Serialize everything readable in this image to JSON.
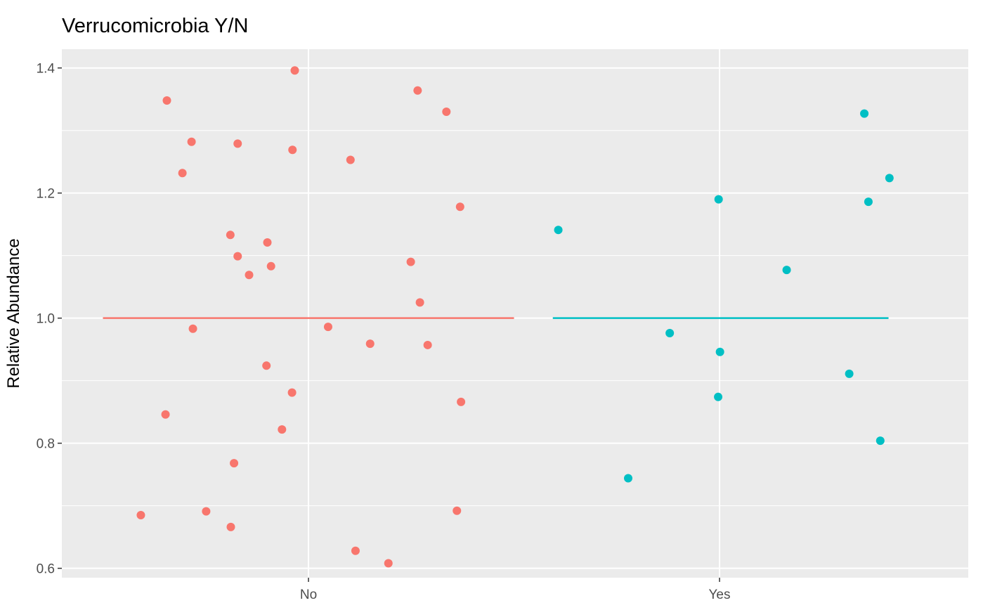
{
  "chart_data": {
    "type": "scatter",
    "title": "Verrucomicrobia Y/N",
    "xlabel": "",
    "ylabel": "Relative Abundance",
    "categories": [
      "No",
      "Yes"
    ],
    "ylim": [
      0.585,
      1.43
    ],
    "yticks": [
      0.6,
      0.8,
      1.0,
      1.2,
      1.4
    ],
    "ytick_labels": [
      "0.6",
      "0.8",
      "1.0",
      "1.2",
      "1.4"
    ],
    "grid": true,
    "legend": "none",
    "series": [
      {
        "category": "No",
        "color": "#F8766D",
        "mean": 1.0,
        "mean_span": [
          -0.45,
          0.45
        ],
        "points": [
          {
            "x": -0.31,
            "y": 1.348
          },
          {
            "x": -0.03,
            "y": 1.396
          },
          {
            "x": -0.256,
            "y": 1.282
          },
          {
            "x": -0.155,
            "y": 1.279
          },
          {
            "x": -0.035,
            "y": 1.269
          },
          {
            "x": -0.276,
            "y": 1.232
          },
          {
            "x": 0.092,
            "y": 1.253
          },
          {
            "x": 0.239,
            "y": 1.364
          },
          {
            "x": 0.302,
            "y": 1.33
          },
          {
            "x": 0.332,
            "y": 1.178
          },
          {
            "x": -0.171,
            "y": 1.133
          },
          {
            "x": -0.09,
            "y": 1.121
          },
          {
            "x": -0.155,
            "y": 1.099
          },
          {
            "x": -0.082,
            "y": 1.083
          },
          {
            "x": -0.13,
            "y": 1.069
          },
          {
            "x": 0.224,
            "y": 1.09
          },
          {
            "x": 0.244,
            "y": 1.025
          },
          {
            "x": -0.253,
            "y": 0.983
          },
          {
            "x": 0.043,
            "y": 0.986
          },
          {
            "x": 0.135,
            "y": 0.959
          },
          {
            "x": 0.261,
            "y": 0.957
          },
          {
            "x": -0.092,
            "y": 0.924
          },
          {
            "x": -0.036,
            "y": 0.881
          },
          {
            "x": 0.334,
            "y": 0.866
          },
          {
            "x": -0.313,
            "y": 0.846
          },
          {
            "x": -0.058,
            "y": 0.822
          },
          {
            "x": -0.163,
            "y": 0.768
          },
          {
            "x": -0.367,
            "y": 0.685
          },
          {
            "x": -0.224,
            "y": 0.691
          },
          {
            "x": -0.17,
            "y": 0.666
          },
          {
            "x": 0.325,
            "y": 0.692
          },
          {
            "x": 0.103,
            "y": 0.628
          },
          {
            "x": 0.175,
            "y": 0.608
          }
        ]
      },
      {
        "category": "Yes",
        "color": "#00BFC4",
        "mean": 1.0,
        "mean_span": [
          -0.365,
          0.37
        ],
        "points": [
          {
            "x": -0.353,
            "y": 1.141
          },
          {
            "x": -0.002,
            "y": 1.19
          },
          {
            "x": 0.147,
            "y": 1.077
          },
          {
            "x": 0.317,
            "y": 1.327
          },
          {
            "x": 0.372,
            "y": 1.224
          },
          {
            "x": 0.326,
            "y": 1.186
          },
          {
            "x": -0.109,
            "y": 0.976
          },
          {
            "x": 0.001,
            "y": 0.946
          },
          {
            "x": -0.003,
            "y": 0.874
          },
          {
            "x": 0.284,
            "y": 0.911
          },
          {
            "x": 0.352,
            "y": 0.804
          },
          {
            "x": -0.2,
            "y": 0.744
          }
        ]
      }
    ]
  }
}
